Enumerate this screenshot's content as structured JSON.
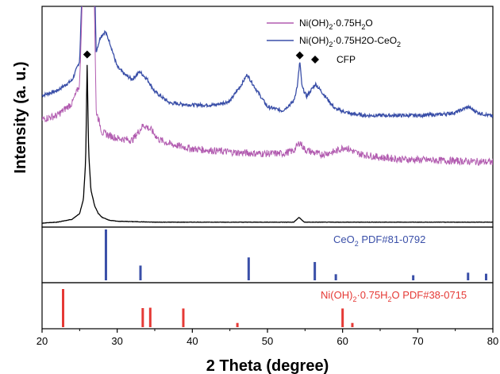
{
  "chart_data": {
    "type": "line",
    "xlabel": "2 Theta (degree)",
    "ylabel": "Intensity (a. u.)",
    "xlim": [
      20,
      80
    ],
    "x_ticks": [
      20,
      30,
      40,
      50,
      60,
      70,
      80
    ],
    "grid": false,
    "legend_placement": "top-right",
    "legend": [
      {
        "name_main": "Ni(OH)",
        "sub": "2",
        "name_rest": "·0.75H",
        "sub2": "2",
        "name_end": "O",
        "color": "#b25cb0",
        "marker": "line"
      },
      {
        "name_main": "Ni(OH)",
        "sub": "2",
        "name_rest": "·0.75H2O-CeO",
        "sub2": "2",
        "name_end": "",
        "color": "#3a4fa8",
        "marker": "line"
      },
      {
        "name_main": "CFP",
        "sub": "",
        "name_rest": "",
        "sub2": "",
        "name_end": "",
        "color": "#000000",
        "marker": "diamond"
      }
    ],
    "series": [
      {
        "key": "ceo2_composite",
        "color": "#3a4fa8",
        "x": [
          20,
          22,
          24,
          25,
          26.0,
          26.3,
          26.6,
          27.2,
          27.8,
          28.4,
          29.0,
          30,
          31,
          32,
          33,
          34,
          35,
          37,
          40,
          43,
          45,
          46.5,
          47.3,
          48.2,
          50,
          52,
          53.5,
          54.0,
          54.3,
          54.6,
          55.2,
          56.4,
          57.5,
          59,
          61,
          63,
          65,
          67,
          70,
          73,
          75,
          76.7,
          78,
          80
        ],
        "y": [
          13.4,
          13.9,
          15,
          17,
          40,
          70,
          40,
          18,
          19.6,
          20.1,
          19,
          16.4,
          15.6,
          15.1,
          15.9,
          15.1,
          13.8,
          12.6,
          12.4,
          12.4,
          12.8,
          14.5,
          15.6,
          14.4,
          12.2,
          11.8,
          12.8,
          14.5,
          17.0,
          14.3,
          13.3,
          14.6,
          13.5,
          12.0,
          11.5,
          11.3,
          11.3,
          11.3,
          11.3,
          11.4,
          11.6,
          12.2,
          11.6,
          11.2
        ]
      },
      {
        "key": "nioh2",
        "color": "#b25cb0",
        "x": [
          20,
          22,
          24,
          25,
          26.0,
          26.3,
          26.6,
          27.2,
          28,
          30,
          32,
          33.5,
          34.5,
          35.5,
          37,
          40,
          43,
          46,
          49,
          52,
          53.5,
          54.3,
          55,
          57,
          59,
          60.3,
          62,
          65,
          68,
          72,
          76,
          80
        ],
        "y": [
          10.9,
          11.3,
          12.6,
          14.5,
          40,
          70,
          40,
          11.8,
          9.5,
          8.9,
          8.7,
          10.3,
          9.8,
          8.8,
          8.3,
          7.8,
          7.6,
          7.4,
          7.3,
          7.3,
          7.6,
          8.5,
          7.7,
          7.2,
          7.5,
          8.0,
          7.3,
          6.9,
          6.7,
          6.6,
          6.5,
          6.4
        ]
      },
      {
        "key": "cfp",
        "color": "#000000",
        "x": [
          20,
          22,
          24,
          25,
          25.5,
          25.8,
          26.0,
          26.2,
          26.5,
          27,
          27.5,
          28,
          29,
          30,
          35,
          40,
          45,
          50,
          53.5,
          54.2,
          54.9,
          60,
          70,
          80
        ],
        "y": [
          0,
          0.1,
          0.4,
          1.0,
          2.5,
          6.5,
          16.6,
          7.5,
          3.5,
          1.8,
          1.0,
          0.6,
          0.3,
          0.2,
          0.1,
          0.1,
          0.1,
          0.1,
          0.1,
          0.6,
          0.1,
          0.1,
          0.1,
          0.1
        ]
      }
    ],
    "markers": [
      {
        "x": 26.0,
        "y": 17.7,
        "symbol": "diamond",
        "color": "#000000"
      },
      {
        "x": 54.3,
        "y": 17.6,
        "symbol": "diamond",
        "color": "#000000"
      }
    ],
    "reference_panels": [
      {
        "label_main": "CeO",
        "label_sub": "2",
        "label_rest": " PDF#81-0792",
        "color": "#3a4fa8",
        "positions": [
          28.5,
          33.1,
          47.5,
          56.3,
          59.1,
          69.4,
          76.7,
          79.1
        ],
        "intensities": [
          100,
          29,
          45,
          36,
          12,
          10,
          15,
          13
        ]
      },
      {
        "label_main": "Ni(OH)",
        "label_sub": "2",
        "label_rest": "·0.75H",
        "label_sub2": "2",
        "label_end": "O PDF#38-0715",
        "color": "#e53935",
        "positions": [
          22.8,
          33.4,
          34.4,
          38.8,
          46.0,
          60.0,
          61.3
        ],
        "intensities": [
          100,
          50,
          51,
          49,
          11,
          49,
          11
        ]
      }
    ]
  }
}
